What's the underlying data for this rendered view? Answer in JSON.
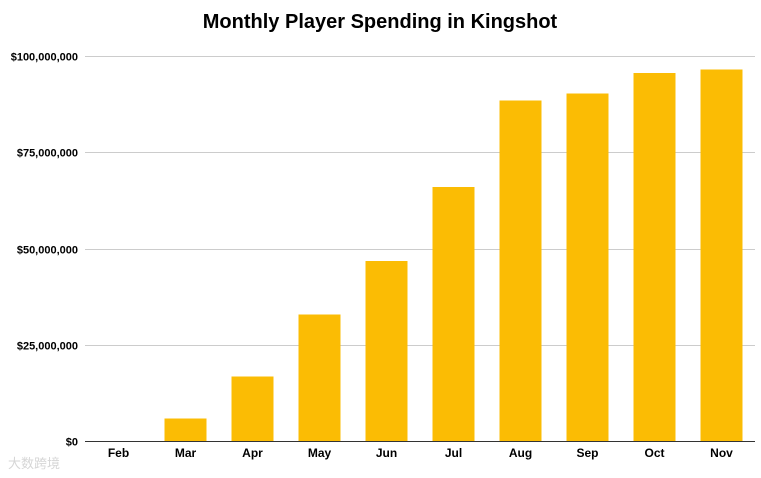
{
  "chart_data": {
    "type": "bar",
    "title": "Monthly Player Spending in Kingshot",
    "xlabel": "",
    "ylabel": "",
    "categories": [
      "Feb",
      "Mar",
      "Apr",
      "May",
      "Jun",
      "Jul",
      "Aug",
      "Sep",
      "Oct",
      "Nov"
    ],
    "values": [
      0,
      5800000,
      16800000,
      32800000,
      46800000,
      66000000,
      88500000,
      90200000,
      95600000,
      96500000
    ],
    "ylim": [
      0,
      100000000
    ],
    "yticks": [
      0,
      25000000,
      50000000,
      75000000,
      100000000
    ],
    "ytick_labels": [
      "$0",
      "$25,000,000",
      "$50,000,000",
      "$75,000,000",
      "$100,000,000"
    ],
    "grid": true,
    "legend": "none",
    "bar_color": "#FBBC04"
  },
  "watermark": {
    "text": "大数跨境"
  }
}
